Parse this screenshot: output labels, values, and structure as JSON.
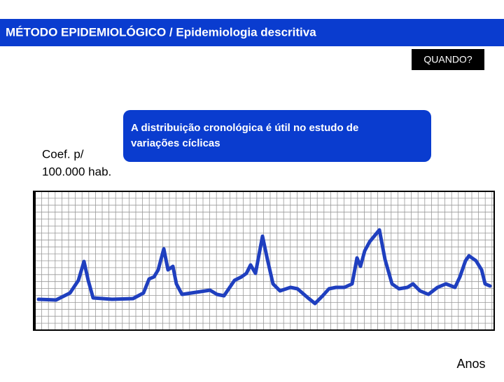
{
  "header": {
    "title": "MÉTODO EPIDEMIOLÓGICO / Epidemiologia descritiva"
  },
  "badge": "QUANDO?",
  "callout": {
    "lines": [
      "A distribuição cronológica é útil no estudo de",
      "variações cíclicas"
    ]
  },
  "y_label": {
    "lines": [
      "Coef. p/",
      "100.000 hab."
    ]
  },
  "x_label": "Anos"
}
